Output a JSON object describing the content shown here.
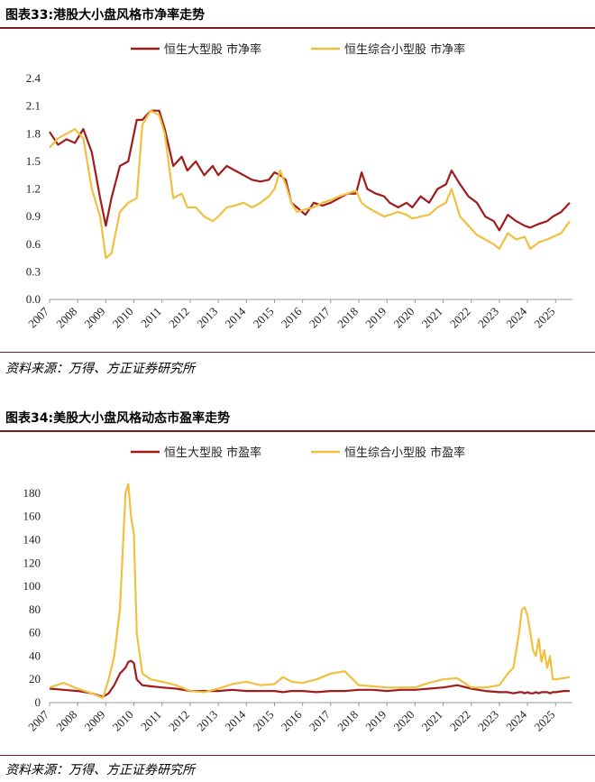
{
  "chart_data": [
    {
      "type": "line",
      "title": "图表33:港股大小盘风格市净率走势",
      "source": "资料来源：万得、方正证券研究所",
      "ylim": [
        0,
        2.4
      ],
      "yticks": [
        "0.0",
        "0.3",
        "0.6",
        "0.9",
        "1.2",
        "1.5",
        "1.8",
        "2.1",
        "2.4"
      ],
      "xticks": [
        "2007",
        "2008",
        "2009",
        "2010",
        "2011",
        "2012",
        "2013",
        "2014",
        "2015",
        "2016",
        "2017",
        "2018",
        "2019",
        "2020",
        "2021",
        "2022",
        "2023",
        "2024",
        "2025"
      ],
      "x": [
        2007.0,
        2007.3,
        2007.6,
        2007.9,
        2008.2,
        2008.5,
        2008.8,
        2009.0,
        2009.2,
        2009.5,
        2009.8,
        2010.1,
        2010.3,
        2010.6,
        2010.9,
        2011.1,
        2011.4,
        2011.7,
        2011.9,
        2012.2,
        2012.5,
        2012.8,
        2013.0,
        2013.3,
        2013.6,
        2013.9,
        2014.2,
        2014.5,
        2014.8,
        2015.0,
        2015.2,
        2015.4,
        2015.6,
        2015.8,
        2016.1,
        2016.4,
        2016.7,
        2017.0,
        2017.3,
        2017.6,
        2017.9,
        2018.1,
        2018.3,
        2018.6,
        2018.9,
        2019.1,
        2019.4,
        2019.7,
        2019.9,
        2020.2,
        2020.5,
        2020.8,
        2021.1,
        2021.3,
        2021.6,
        2021.9,
        2022.2,
        2022.5,
        2022.8,
        2023.0,
        2023.3,
        2023.6,
        2023.9,
        2024.1,
        2024.4,
        2024.7,
        2024.9,
        2025.2,
        2025.5
      ],
      "series": [
        {
          "name": "恒生大型股 市净率",
          "color": "#a01c1c",
          "values": [
            1.82,
            1.68,
            1.74,
            1.7,
            1.85,
            1.6,
            1.1,
            0.8,
            1.1,
            1.45,
            1.5,
            1.95,
            1.95,
            2.05,
            2.05,
            1.85,
            1.45,
            1.55,
            1.4,
            1.5,
            1.35,
            1.45,
            1.35,
            1.45,
            1.4,
            1.35,
            1.3,
            1.28,
            1.3,
            1.38,
            1.35,
            1.3,
            1.05,
            1.0,
            0.92,
            1.05,
            1.02,
            1.05,
            1.1,
            1.15,
            1.15,
            1.38,
            1.2,
            1.15,
            1.12,
            1.05,
            1.0,
            1.05,
            1.0,
            1.12,
            1.05,
            1.2,
            1.25,
            1.4,
            1.25,
            1.12,
            1.05,
            0.9,
            0.85,
            0.75,
            0.92,
            0.85,
            0.8,
            0.78,
            0.82,
            0.85,
            0.9,
            0.95,
            1.05
          ]
        },
        {
          "name": "恒生综合小型股 市净率",
          "color": "#f0c040",
          "values": [
            1.65,
            1.75,
            1.8,
            1.85,
            1.75,
            1.2,
            0.9,
            0.45,
            0.5,
            0.95,
            1.05,
            1.1,
            1.9,
            2.05,
            2.0,
            1.8,
            1.1,
            1.15,
            1.0,
            1.0,
            0.9,
            0.85,
            0.9,
            1.0,
            1.02,
            1.05,
            1.0,
            1.05,
            1.12,
            1.2,
            1.4,
            1.25,
            1.05,
            0.95,
            0.98,
            1.0,
            1.05,
            1.08,
            1.12,
            1.15,
            1.18,
            1.05,
            1.0,
            0.95,
            0.9,
            0.92,
            0.95,
            0.92,
            0.88,
            0.9,
            0.92,
            1.0,
            1.05,
            1.2,
            0.9,
            0.8,
            0.7,
            0.65,
            0.6,
            0.55,
            0.72,
            0.65,
            0.68,
            0.55,
            0.62,
            0.65,
            0.68,
            0.72,
            0.85
          ]
        }
      ]
    },
    {
      "type": "line",
      "title": "图表34:美股大小盘风格动态市盈率走势",
      "source": "资料来源：万得、方正证券研究所",
      "ylim": [
        0,
        190
      ],
      "yticks": [
        "0",
        "20",
        "40",
        "60",
        "80",
        "100",
        "120",
        "140",
        "160",
        "180"
      ],
      "xticks": [
        "2007",
        "2008",
        "2009",
        "2010",
        "2011",
        "2012",
        "2013",
        "2014",
        "2015",
        "2016",
        "2017",
        "2018",
        "2019",
        "2020",
        "2021",
        "2022",
        "2023",
        "2024",
        "2025"
      ],
      "x": [
        2007.0,
        2007.5,
        2008.0,
        2008.5,
        2008.9,
        2009.1,
        2009.3,
        2009.5,
        2009.7,
        2009.8,
        2009.9,
        2010.0,
        2010.1,
        2010.3,
        2010.6,
        2011.0,
        2011.5,
        2012.0,
        2012.5,
        2013.0,
        2013.5,
        2014.0,
        2014.5,
        2015.0,
        2015.3,
        2015.6,
        2016.0,
        2016.5,
        2017.0,
        2017.5,
        2018.0,
        2018.5,
        2019.0,
        2019.5,
        2020.0,
        2020.5,
        2021.0,
        2021.5,
        2022.0,
        2022.5,
        2023.0,
        2023.3,
        2023.5,
        2023.7,
        2023.8,
        2023.9,
        2024.0,
        2024.1,
        2024.2,
        2024.3,
        2024.4,
        2024.5,
        2024.6,
        2024.7,
        2024.8,
        2024.9,
        2025.0,
        2025.3,
        2025.5
      ],
      "series": [
        {
          "name": "恒生大型股 市盈率",
          "color": "#a01c1c",
          "values": [
            12,
            11,
            10,
            8,
            5,
            8,
            15,
            25,
            30,
            35,
            36,
            34,
            20,
            15,
            14,
            13,
            12,
            10,
            10,
            10,
            11,
            10,
            10,
            10,
            9,
            10,
            10,
            9,
            10,
            10,
            11,
            11,
            10,
            11,
            11,
            12,
            13,
            15,
            12,
            10,
            9,
            9,
            8,
            9,
            9,
            8,
            9,
            8,
            8,
            9,
            8,
            9,
            9,
            9,
            8,
            9,
            9,
            10,
            10
          ]
        },
        {
          "name": "恒生综合小型股 市盈率",
          "color": "#f0c040",
          "values": [
            13,
            17,
            12,
            8,
            4,
            20,
            40,
            80,
            180,
            188,
            160,
            145,
            60,
            25,
            20,
            18,
            15,
            10,
            9,
            12,
            16,
            18,
            15,
            16,
            22,
            18,
            17,
            20,
            25,
            27,
            15,
            14,
            13,
            13,
            13,
            17,
            20,
            21,
            13,
            13,
            15,
            25,
            30,
            60,
            80,
            82,
            75,
            60,
            45,
            40,
            55,
            35,
            45,
            30,
            40,
            20,
            20,
            21,
            22
          ]
        }
      ]
    }
  ]
}
